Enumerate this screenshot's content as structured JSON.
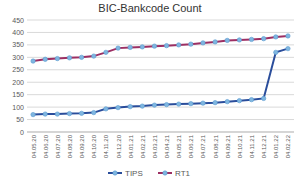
{
  "chart_data": {
    "type": "line",
    "title": "BIC-Bankcode Count",
    "categories": [
      "04.05.20",
      "04.06.20",
      "04.07.20",
      "04.08.20",
      "04.09.20",
      "04.10.20",
      "04.11.20",
      "04.12.20",
      "04.01.21",
      "04.02.21",
      "04.03.21",
      "04.04.21",
      "04.05.21",
      "04.06.21",
      "04.07.21",
      "04.08.21",
      "04.09.21",
      "04.10.21",
      "04.11.21",
      "04.12.21",
      "04.01.22",
      "04.02.22"
    ],
    "series": [
      {
        "name": "TIPS",
        "color": "#2a4d9b",
        "marker": "circle",
        "values": [
          70,
          72,
          72,
          74,
          75,
          78,
          93,
          98,
          102,
          104,
          108,
          110,
          112,
          114,
          116,
          118,
          122,
          126,
          130,
          135,
          320,
          335
        ]
      },
      {
        "name": "RT1",
        "color": "#9c2f63",
        "marker": "circle",
        "values": [
          285,
          292,
          295,
          298,
          300,
          305,
          320,
          337,
          340,
          342,
          345,
          347,
          350,
          353,
          358,
          362,
          368,
          370,
          372,
          375,
          382,
          386
        ]
      }
    ],
    "ylim": [
      0,
      450
    ],
    "yticks": [
      0,
      50,
      100,
      150,
      200,
      250,
      300,
      350,
      400,
      450
    ],
    "grid": true,
    "legend": "bottom"
  }
}
